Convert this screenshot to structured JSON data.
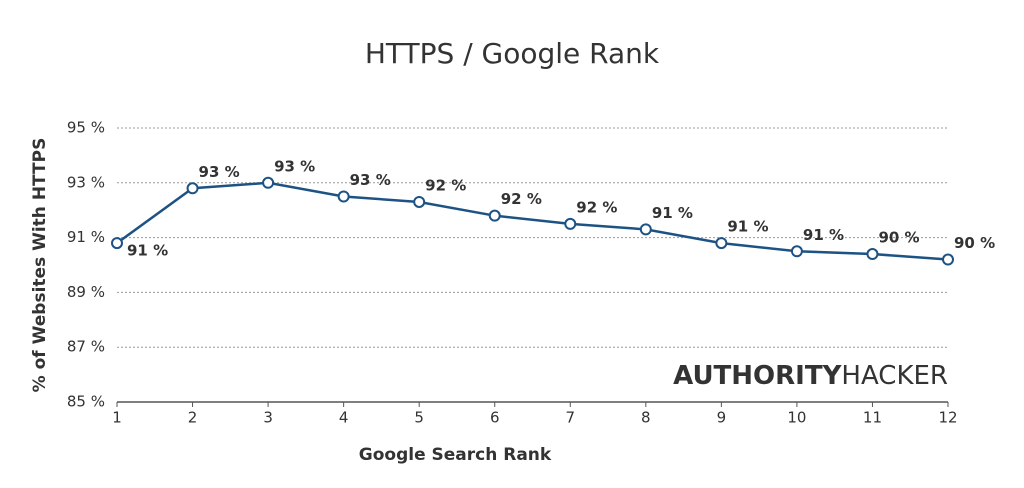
{
  "chart_data": {
    "type": "line",
    "title": "HTTPS / Google Rank",
    "x_label": "Google Search Rank",
    "y_label": "% of Websites With HTTPS",
    "x": [
      1,
      2,
      3,
      4,
      5,
      6,
      7,
      8,
      9,
      10,
      11,
      12
    ],
    "series": [
      {
        "name": "HTTPS",
        "color": "#1d5384",
        "values": [
          90.8,
          92.8,
          93.0,
          92.5,
          92.3,
          91.8,
          91.5,
          91.3,
          90.8,
          90.5,
          90.4,
          90.2
        ],
        "value_labels": [
          "91 %",
          "93 %",
          "93 %",
          "93 %",
          "92 %",
          "92 %",
          "92 %",
          "91 %",
          "91 %",
          "91 %",
          "90 %",
          "90 %"
        ]
      }
    ],
    "xlim": [
      1,
      12
    ],
    "xticks": [
      1,
      2,
      3,
      4,
      5,
      6,
      7,
      8,
      9,
      10,
      11,
      12
    ],
    "ylim": [
      85,
      95
    ],
    "yticks": [
      {
        "value": 85,
        "label": "85 %"
      },
      {
        "value": 87,
        "label": "87 %"
      },
      {
        "value": 89,
        "label": "89 %"
      },
      {
        "value": 91,
        "label": "91 %"
      },
      {
        "value": 93,
        "label": "93 %"
      },
      {
        "value": 95,
        "label": "95 %"
      }
    ],
    "grid": true,
    "watermark": {
      "bold": "AUTHORITY",
      "light": "HACKER"
    }
  }
}
